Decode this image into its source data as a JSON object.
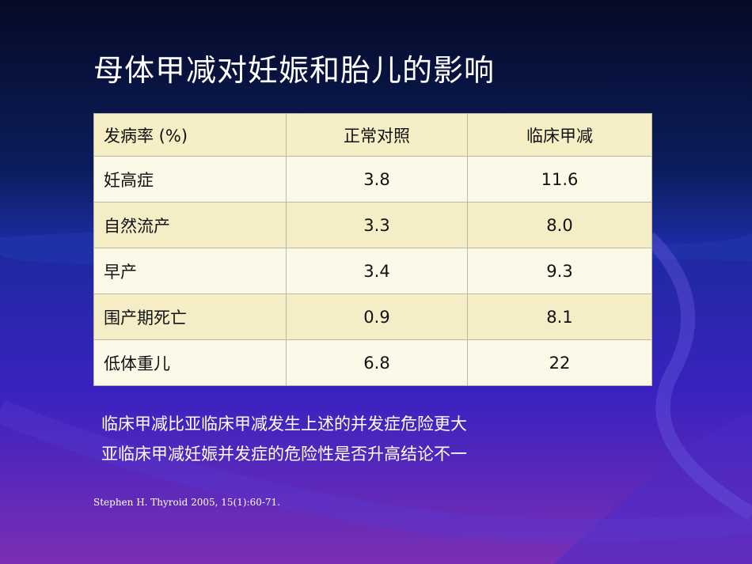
{
  "title": "母体甲减对妊娠和胎儿的影响",
  "table": {
    "header": [
      "发病率 (%)",
      "正常对照",
      "临床甲减"
    ],
    "rows": [
      [
        "妊高症",
        "3.8",
        "11.6"
      ],
      [
        "自然流产",
        "3.3",
        "8.0"
      ],
      [
        "早产",
        "3.4",
        "9.3"
      ],
      [
        "围产期死亡",
        "0.9",
        "8.1"
      ],
      [
        "低体重儿",
        "6.8",
        "22"
      ]
    ]
  },
  "notes": [
    "临床甲减比亚临床甲减发生上述的并发症危险更大",
    "亚临床甲减妊娠并发症的危险性是否升高结论不一"
  ],
  "citation": "Stephen H. Thyroid 2005, 15(1):60-71."
}
